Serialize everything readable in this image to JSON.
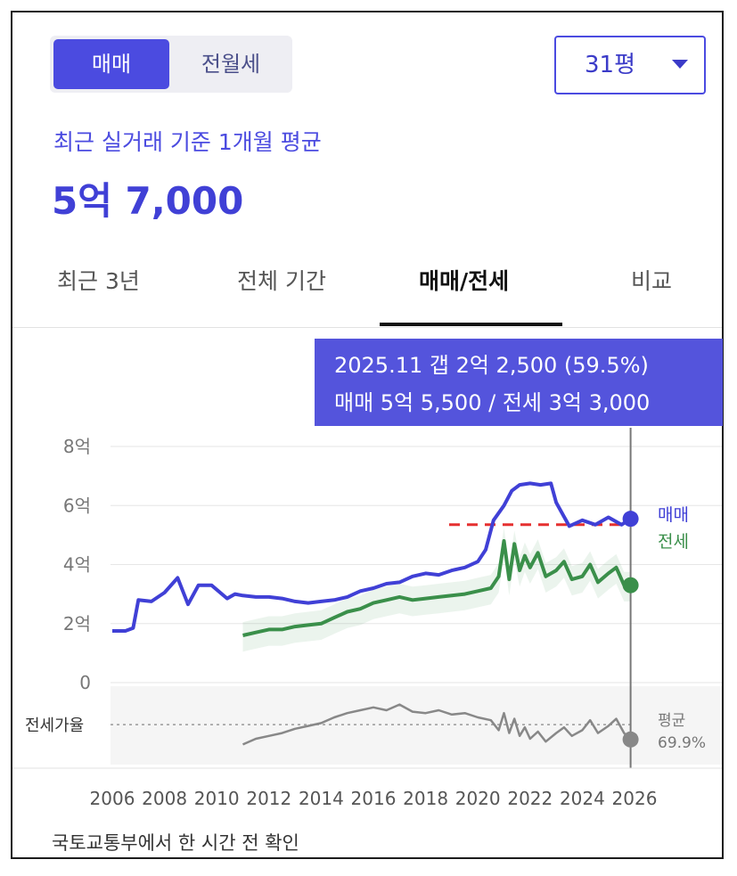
{
  "toggle": {
    "active": "매매",
    "inactive": "전월세"
  },
  "size_select": {
    "value": "31평"
  },
  "subtitle": "최근 실거래 기준 1개월 평균",
  "price": "5억 7,000",
  "tabs": [
    {
      "label": "최근 3년"
    },
    {
      "label": "전체 기간"
    },
    {
      "label": "매매/전세"
    },
    {
      "label": "비교"
    }
  ],
  "tooltip": {
    "line1": "2025.11  갭 2억 2,500 (59.5%)",
    "line2": "매매 5억 5,500 / 전세 3억 3,000"
  },
  "footer": "국토교통부에서 한 시간 전 확인",
  "chart_data": {
    "type": "line",
    "xlim": [
      2006,
      2026
    ],
    "x_ticks": [
      "2006",
      "2008",
      "2010",
      "2012",
      "2014",
      "2016",
      "2018",
      "2020",
      "2022",
      "2024",
      "2026"
    ],
    "ylim": [
      0,
      8
    ],
    "y_ticks": [
      {
        "value": 0,
        "label": "0"
      },
      {
        "value": 2,
        "label": "2억"
      },
      {
        "value": 4,
        "label": "4억"
      },
      {
        "value": 6,
        "label": "6억"
      },
      {
        "value": 8,
        "label": "8억"
      }
    ],
    "reference_line": {
      "value": 5.35
    },
    "colors": {
      "sale": "#4040d6",
      "jeonse": "#3a8f4a",
      "ratio": "#888888",
      "reference": "#e53030"
    },
    "series": [
      {
        "name": "매매",
        "x": [
          2006.0,
          2006.5,
          2006.8,
          2007.0,
          2007.5,
          2008.0,
          2008.5,
          2008.9,
          2009.3,
          2009.8,
          2010.4,
          2010.7,
          2011.0,
          2011.5,
          2012.0,
          2012.5,
          2013.0,
          2013.5,
          2014.0,
          2014.5,
          2015.0,
          2015.5,
          2016.0,
          2016.5,
          2017.0,
          2017.5,
          2018.0,
          2018.5,
          2019.0,
          2019.5,
          2020.0,
          2020.3,
          2020.6,
          2021.0,
          2021.3,
          2021.6,
          2022.0,
          2022.4,
          2022.8,
          2023.0,
          2023.5,
          2024.0,
          2024.5,
          2025.0,
          2025.5,
          2025.85
        ],
        "values": [
          1.75,
          1.75,
          1.85,
          2.8,
          2.75,
          3.05,
          3.55,
          2.65,
          3.3,
          3.3,
          2.85,
          3.0,
          2.95,
          2.9,
          2.9,
          2.85,
          2.75,
          2.7,
          2.75,
          2.8,
          2.9,
          3.1,
          3.2,
          3.35,
          3.4,
          3.6,
          3.7,
          3.65,
          3.8,
          3.9,
          4.1,
          4.5,
          5.5,
          6.0,
          6.5,
          6.7,
          6.75,
          6.7,
          6.75,
          6.1,
          5.3,
          5.5,
          5.35,
          5.6,
          5.35,
          5.55
        ]
      },
      {
        "name": "전세",
        "x": [
          2011.0,
          2011.5,
          2012.0,
          2012.5,
          2013.0,
          2013.5,
          2014.0,
          2014.5,
          2015.0,
          2015.5,
          2016.0,
          2016.5,
          2017.0,
          2017.5,
          2018.0,
          2018.5,
          2019.0,
          2019.5,
          2020.0,
          2020.5,
          2020.8,
          2021.0,
          2021.2,
          2021.4,
          2021.6,
          2021.8,
          2022.0,
          2022.3,
          2022.6,
          2023.0,
          2023.3,
          2023.6,
          2024.0,
          2024.3,
          2024.6,
          2025.0,
          2025.3,
          2025.6,
          2025.85
        ],
        "values": [
          1.6,
          1.7,
          1.8,
          1.8,
          1.9,
          1.95,
          2.0,
          2.2,
          2.4,
          2.5,
          2.7,
          2.8,
          2.9,
          2.8,
          2.85,
          2.9,
          2.95,
          3.0,
          3.1,
          3.2,
          3.6,
          4.8,
          3.5,
          4.7,
          3.8,
          4.3,
          3.9,
          4.4,
          3.6,
          3.8,
          4.1,
          3.5,
          3.6,
          4.0,
          3.4,
          3.7,
          3.9,
          3.3,
          3.3
        ]
      },
      {
        "name": "전세가율",
        "x": [
          2011.0,
          2011.5,
          2012.0,
          2012.5,
          2013.0,
          2013.5,
          2014.0,
          2014.5,
          2015.0,
          2015.5,
          2016.0,
          2016.5,
          2017.0,
          2017.5,
          2018.0,
          2018.5,
          2019.0,
          2019.5,
          2020.0,
          2020.5,
          2020.8,
          2021.0,
          2021.2,
          2021.4,
          2021.6,
          2021.8,
          2022.0,
          2022.3,
          2022.6,
          2023.0,
          2023.3,
          2023.6,
          2024.0,
          2024.3,
          2024.6,
          2025.0,
          2025.3,
          2025.6,
          2025.85
        ],
        "values": [
          56,
          60,
          62,
          64,
          67,
          69,
          71,
          75,
          78,
          80,
          82,
          80,
          84,
          79,
          78,
          80,
          77,
          78,
          75,
          73,
          66,
          78,
          64,
          74,
          62,
          68,
          60,
          65,
          58,
          64,
          68,
          62,
          66,
          73,
          64,
          69,
          74,
          64,
          59.5
        ]
      }
    ],
    "end_labels": [
      "매매",
      "전세"
    ],
    "ratio_axis_label": "전세가율",
    "ratio_ylim": [
      45,
      95
    ],
    "ratio_average": {
      "label": "평균",
      "value": "69.9%",
      "y": 69.9
    },
    "highlight": {
      "x": 2025.85,
      "sale": 5.55,
      "jeonse": 3.3,
      "ratio": 59.5
    }
  }
}
